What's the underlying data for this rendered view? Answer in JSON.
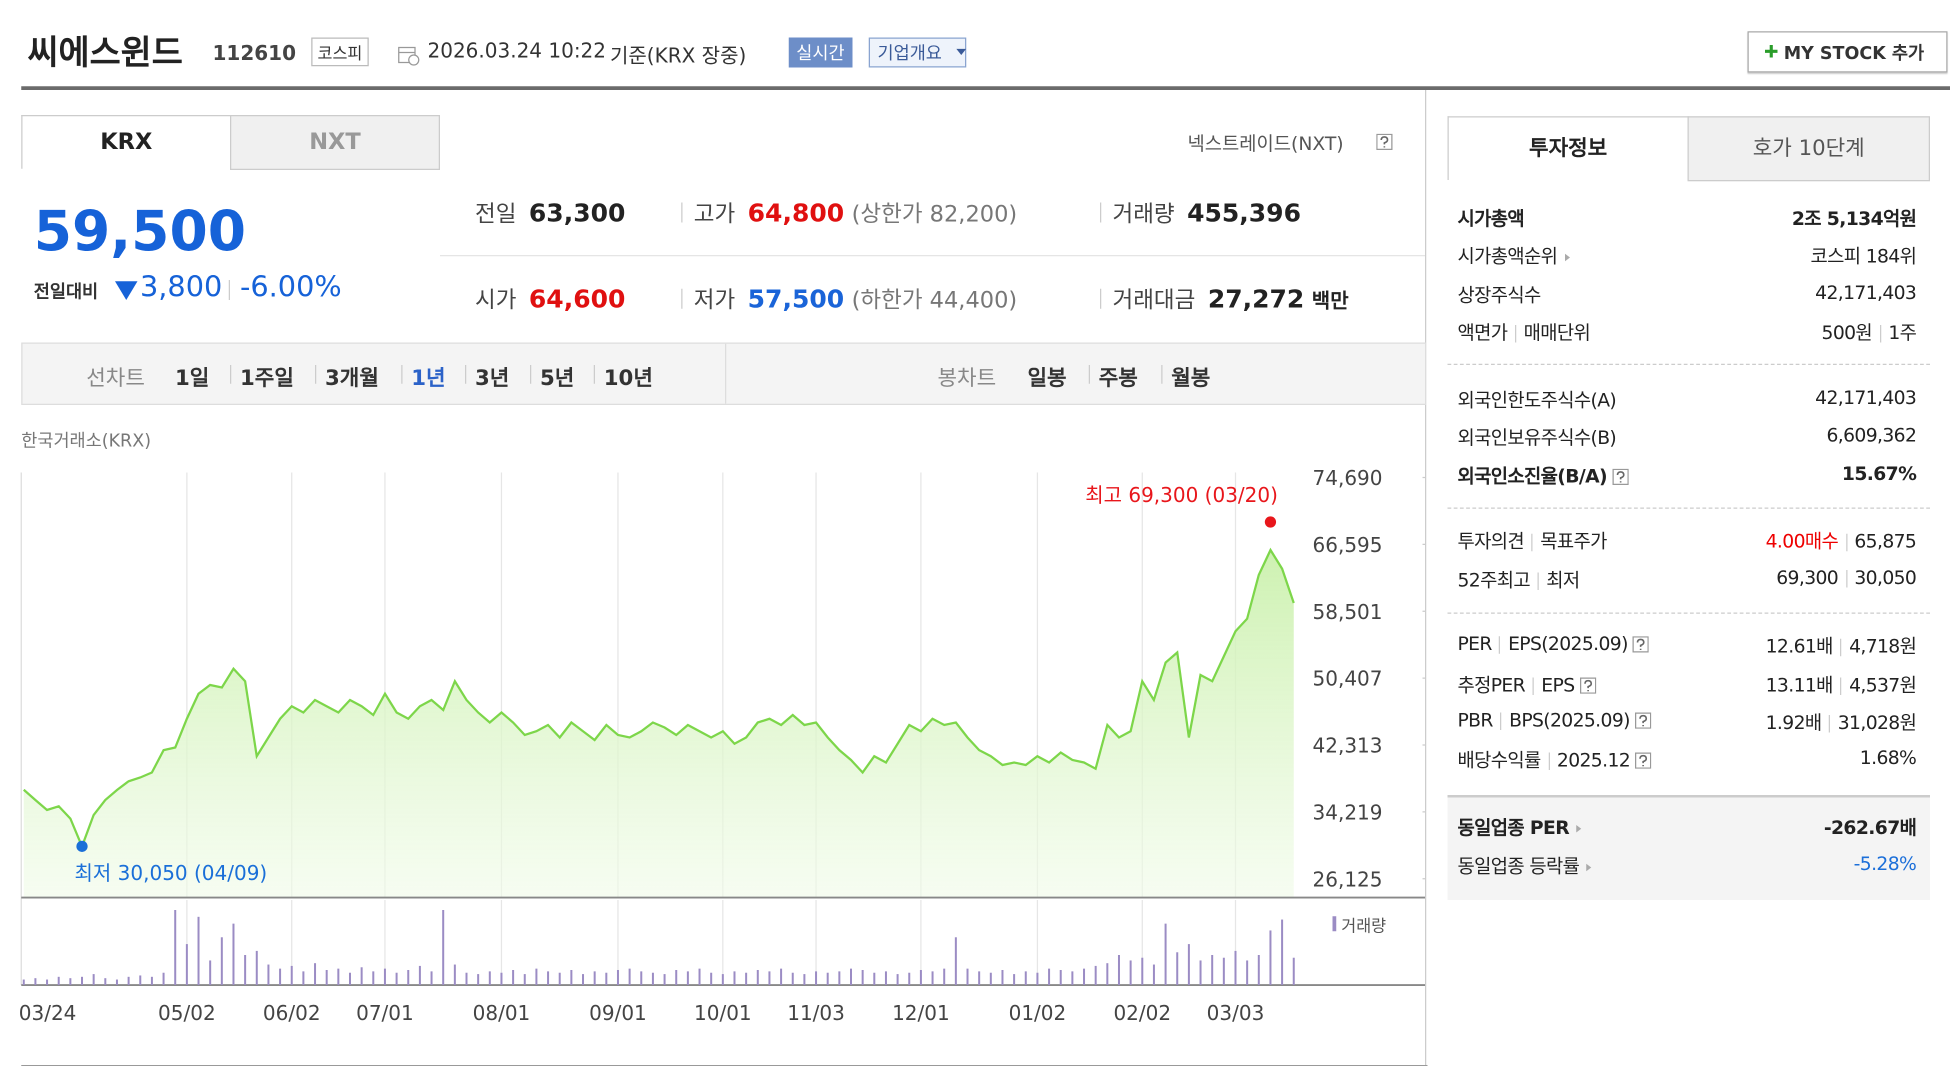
{
  "header": {
    "name": "씨에스윈드",
    "code": "112610",
    "market": "코스피",
    "datetime": "2026.03.24 10:22",
    "basis": "기준(KRX 장중)",
    "realtime": "실시간",
    "overview": "기업개요",
    "mystock": "MY STOCK 추가"
  },
  "tabs": [
    "KRX",
    "NXT"
  ],
  "nxt_link": "넥스트레이드(NXT)",
  "price": {
    "current": "59,500",
    "change_label": "전일대비",
    "change": "3,800",
    "rate": "-6.00%"
  },
  "quotes": [
    {
      "label": "전일",
      "value": "63,300"
    },
    {
      "label": "고가",
      "value": "64,800",
      "extra": "(상한가 82,200)"
    },
    {
      "label": "거래량",
      "value": "455,396"
    },
    {
      "label": "시가",
      "value": "64,600"
    },
    {
      "label": "저가",
      "value": "57,500",
      "extra": "(하한가 44,400)"
    },
    {
      "label": "거래대금",
      "value": "27,272",
      "unit": "백만"
    }
  ],
  "toolbar": {
    "line_label": "선차트",
    "periods": [
      "1일",
      "1주일",
      "3개월",
      "1년",
      "3년",
      "5년",
      "10년"
    ],
    "candle_label": "봉차트",
    "candles": [
      "일봉",
      "주봉",
      "월봉"
    ]
  },
  "chart_source": "한국거래소(KRX)",
  "chart_data": {
    "type": "line",
    "categories": [
      "03/24",
      null,
      null,
      null,
      null,
      null,
      null,
      null,
      null,
      null,
      null,
      null,
      null,
      null,
      "05/02",
      null,
      null,
      null,
      null,
      null,
      null,
      null,
      null,
      "06/02",
      null,
      null,
      null,
      null,
      null,
      null,
      null,
      "07/01",
      null,
      null,
      null,
      null,
      null,
      null,
      null,
      null,
      null,
      "08/01",
      null,
      null,
      null,
      null,
      null,
      null,
      null,
      null,
      null,
      "09/01",
      null,
      null,
      null,
      null,
      null,
      null,
      null,
      null,
      "10/01",
      null,
      null,
      null,
      null,
      null,
      null,
      null,
      "11/03",
      null,
      null,
      null,
      null,
      null,
      null,
      null,
      null,
      "12/01",
      null,
      null,
      null,
      null,
      null,
      null,
      null,
      null,
      null,
      "01/02",
      null,
      null,
      null,
      null,
      null,
      null,
      null,
      null,
      "02/02",
      null,
      null,
      null,
      null,
      null,
      null,
      null,
      "03/03",
      null,
      null,
      null,
      null,
      null
    ],
    "series": [
      {
        "name": "주가",
        "color": "#7dd64a",
        "values": [
          36900,
          35660,
          34450,
          34900,
          33400,
          30050,
          33840,
          35660,
          36870,
          37930,
          38380,
          38990,
          41700,
          42010,
          45490,
          48520,
          49570,
          49270,
          51540,
          50030,
          40950,
          43220,
          45490,
          47000,
          46250,
          47760,
          47000,
          46250,
          47760,
          47000,
          45950,
          48520,
          46250,
          45490,
          47000,
          47760,
          46550,
          50030,
          47760,
          46250,
          45040,
          46250,
          45040,
          43520,
          43980,
          44740,
          43220,
          45040,
          43980,
          42920,
          44740,
          43520,
          43220,
          43980,
          45040,
          44430,
          43520,
          44740,
          43980,
          43220,
          43980,
          42470,
          43220,
          45040,
          45490,
          44740,
          45950,
          44740,
          45040,
          43220,
          41700,
          40500,
          38990,
          40950,
          40200,
          42470,
          44740,
          43980,
          45490,
          44740,
          45040,
          43220,
          41700,
          40950,
          39890,
          40200,
          39890,
          40950,
          40200,
          41400,
          40500,
          40200,
          39440,
          44740,
          43220,
          43980,
          50030,
          47760,
          52300,
          53510,
          43220,
          50790,
          50030,
          53060,
          56080,
          57600,
          62890,
          65920,
          63650,
          59500
        ]
      },
      {
        "name": "거래량",
        "color": "#9b8cc4",
        "values": [
          4,
          5,
          4,
          6,
          5,
          6,
          8,
          5,
          4,
          6,
          7,
          6,
          9,
          55,
          30,
          50,
          18,
          35,
          45,
          22,
          25,
          15,
          12,
          14,
          10,
          16,
          11,
          12,
          9,
          13,
          10,
          12,
          9,
          11,
          14,
          10,
          55,
          15,
          9,
          8,
          10,
          9,
          11,
          8,
          12,
          10,
          9,
          11,
          8,
          10,
          9,
          11,
          12,
          10,
          9,
          8,
          11,
          10,
          12,
          9,
          8,
          10,
          9,
          11,
          10,
          12,
          9,
          8,
          10,
          9,
          10,
          12,
          11,
          9,
          10,
          8,
          9,
          11,
          10,
          12,
          35,
          12,
          10,
          9,
          11,
          8,
          10,
          9,
          12,
          11,
          10,
          12,
          14,
          16,
          22,
          18,
          20,
          15,
          45,
          24,
          30,
          18,
          22,
          20,
          25,
          18,
          22,
          40,
          48,
          20
        ]
      }
    ],
    "ylim": [
      26125,
      74690
    ],
    "yticks": [
      {
        "value": 26125,
        "label": "26,125"
      },
      {
        "value": 34219,
        "label": "34,219"
      },
      {
        "value": 42313,
        "label": "42,313"
      },
      {
        "value": 50407,
        "label": "50,407"
      },
      {
        "value": 58501,
        "label": "58,501"
      },
      {
        "value": 66595,
        "label": "66,595"
      },
      {
        "value": 74690,
        "label": "74,690"
      }
    ],
    "high": {
      "value": 69300,
      "label": "최고 69,300 (03/20)",
      "color": "#e8161b"
    },
    "low": {
      "value": 30050,
      "label": "최저 30,050 (04/09)",
      "color": "#1a6fd8"
    }
  },
  "info": {
    "tabs": [
      "투자정보",
      "호가 10단계"
    ],
    "groups": [
      [
        {
          "labels": [
            "시가총액"
          ],
          "values": [
            "2조 5,134억원"
          ]
        },
        {
          "labels": [
            "시가총액순위"
          ],
          "values": [
            "코스피 184위"
          ]
        },
        {
          "labels": [
            "상장주식수"
          ],
          "values": [
            "42,171,403"
          ]
        },
        {
          "labels": [
            "액면가",
            "매매단위"
          ],
          "values": [
            "500원",
            "1주"
          ]
        }
      ],
      [
        {
          "labels": [
            "외국인한도주식수(A)"
          ],
          "values": [
            "42,171,403"
          ]
        },
        {
          "labels": [
            "외국인보유주식수(B)"
          ],
          "values": [
            "6,609,362"
          ]
        },
        {
          "labels": [
            "외국인소진율(B/A)"
          ],
          "values": [
            "15.67%"
          ]
        }
      ],
      [
        {
          "labels": [
            "투자의견",
            "목표주가"
          ],
          "values": [
            "4.00매수",
            "65,875"
          ]
        },
        {
          "labels": [
            "52주최고",
            "최저"
          ],
          "values": [
            "69,300",
            "30,050"
          ]
        }
      ],
      [
        {
          "labels": [
            "PER",
            "EPS(2025.09)"
          ],
          "values": [
            "12.61배",
            "4,718원"
          ]
        },
        {
          "labels": [
            "추정PER",
            "EPS"
          ],
          "values": [
            "13.11배",
            "4,537원"
          ]
        },
        {
          "labels": [
            "PBR",
            "BPS(2025.09)"
          ],
          "values": [
            "1.92배",
            "31,028원"
          ]
        },
        {
          "labels": [
            "배당수익률",
            "2025.12"
          ],
          "values": [
            "1.68%"
          ]
        }
      ],
      [
        {
          "labels": [
            "동일업종 PER"
          ],
          "values": [
            "-262.67배"
          ]
        },
        {
          "labels": [
            "동일업종 등락률"
          ],
          "values": [
            "-5.28%"
          ]
        }
      ]
    ]
  }
}
